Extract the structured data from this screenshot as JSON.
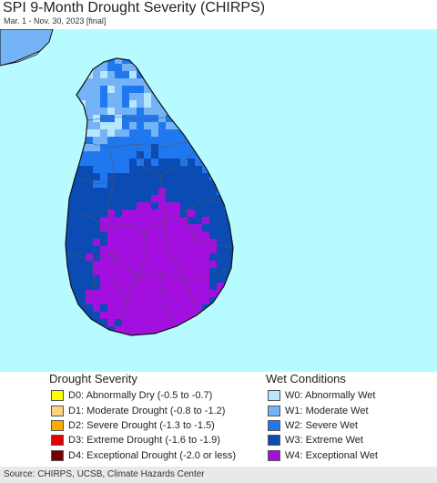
{
  "title": "SPI 9-Month Drought Severity (CHIRPS)",
  "subtitle": "Mar. 1 - Nov. 30, 2023 [final]",
  "map": {
    "water_color": "#b8fbff",
    "country_outline_color": "#111111",
    "district_line_color": "#555555"
  },
  "legend": {
    "drought": {
      "title": "Drought Severity",
      "items": [
        {
          "label": "D0: Abnormally Dry (-0.5 to -0.7)",
          "color": "#ffff00"
        },
        {
          "label": "D1: Moderate Drought (-0.8 to -1.2)",
          "color": "#fcd37f"
        },
        {
          "label": "D2: Severe Drought (-1.3 to -1.5)",
          "color": "#ffaa00"
        },
        {
          "label": "D3: Extreme Drought (-1.6 to -1.9)",
          "color": "#e60000"
        },
        {
          "label": "D4: Exceptional Drought (-2.0 or less)",
          "color": "#730000"
        }
      ]
    },
    "wet": {
      "title": "Wet Conditions",
      "items": [
        {
          "label": "W0: Abnormally Wet",
          "color": "#b8e6ff"
        },
        {
          "label": "W1: Moderate Wet",
          "color": "#74b3f5"
        },
        {
          "label": "W2: Severe Wet",
          "color": "#1f78f0"
        },
        {
          "label": "W3: Extreme Wet",
          "color": "#0a4bb4"
        },
        {
          "label": "W4: Exceptional Wet",
          "color": "#a30fde"
        }
      ]
    }
  },
  "footer": "Source: CHIRPS, UCSB, Climate Hazards Center"
}
